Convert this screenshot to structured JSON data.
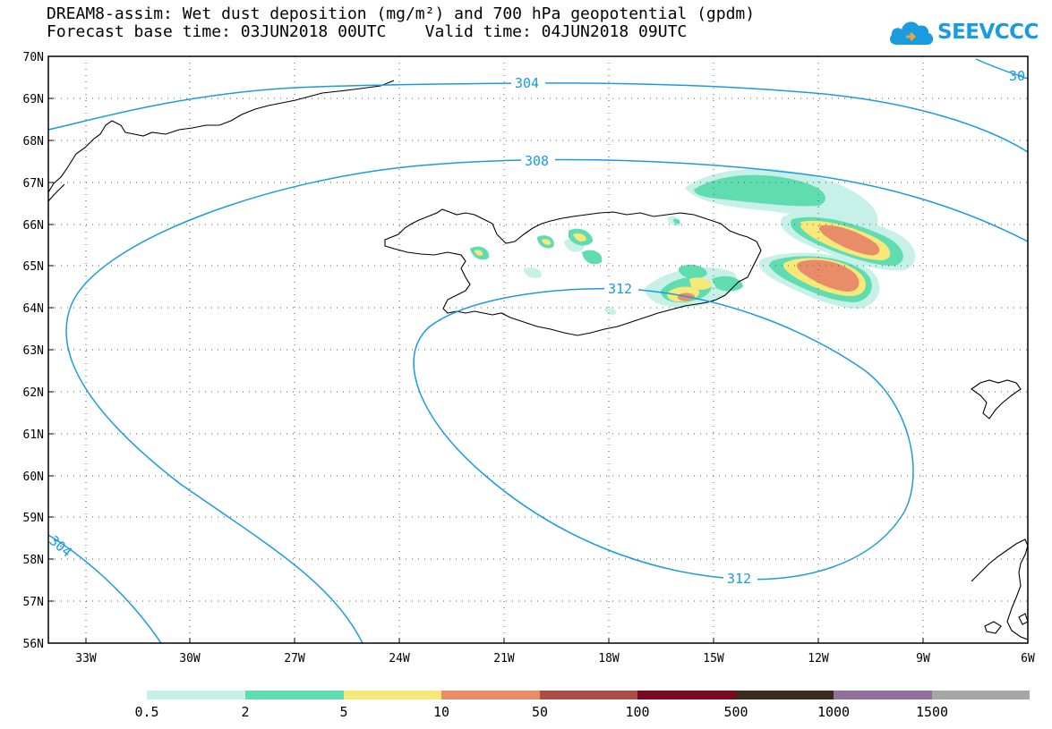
{
  "title": {
    "line1": "DREAM8-assim: Wet dust deposition (mg/m²) and 700 hPa geopotential (gpdm)",
    "line2": "Forecast base time: 03JUN2018 00UTC    Valid time: 04JUN2018 09UTC"
  },
  "logo": {
    "text": "SEEVCCC",
    "icon": "cloud-icon",
    "color": "#1a9be0"
  },
  "map": {
    "lat_labels": [
      "70N",
      "69N",
      "68N",
      "67N",
      "66N",
      "65N",
      "64N",
      "63N",
      "62N",
      "61N",
      "60N",
      "59N",
      "58N",
      "57N",
      "56N"
    ],
    "lon_labels": [
      "33W",
      "30W",
      "27W",
      "24W",
      "21W",
      "18W",
      "15W",
      "12W",
      "9W",
      "6W"
    ],
    "contour_labels": [
      "304",
      "308",
      "312",
      "312",
      "304",
      "30"
    ],
    "contour_color": "#1a9be0",
    "coast_color": "#000000"
  },
  "colorbar": {
    "labels": [
      "0.5",
      "2",
      "5",
      "10",
      "50",
      "100",
      "500",
      "1000",
      "1500"
    ],
    "colors": [
      "#c6f0e8",
      "#5fdcb0",
      "#f7e87a",
      "#e88c6a",
      "#a94f47",
      "#7a0a22",
      "#3b2a1e",
      "#92709d",
      "#a6a6a6"
    ]
  }
}
